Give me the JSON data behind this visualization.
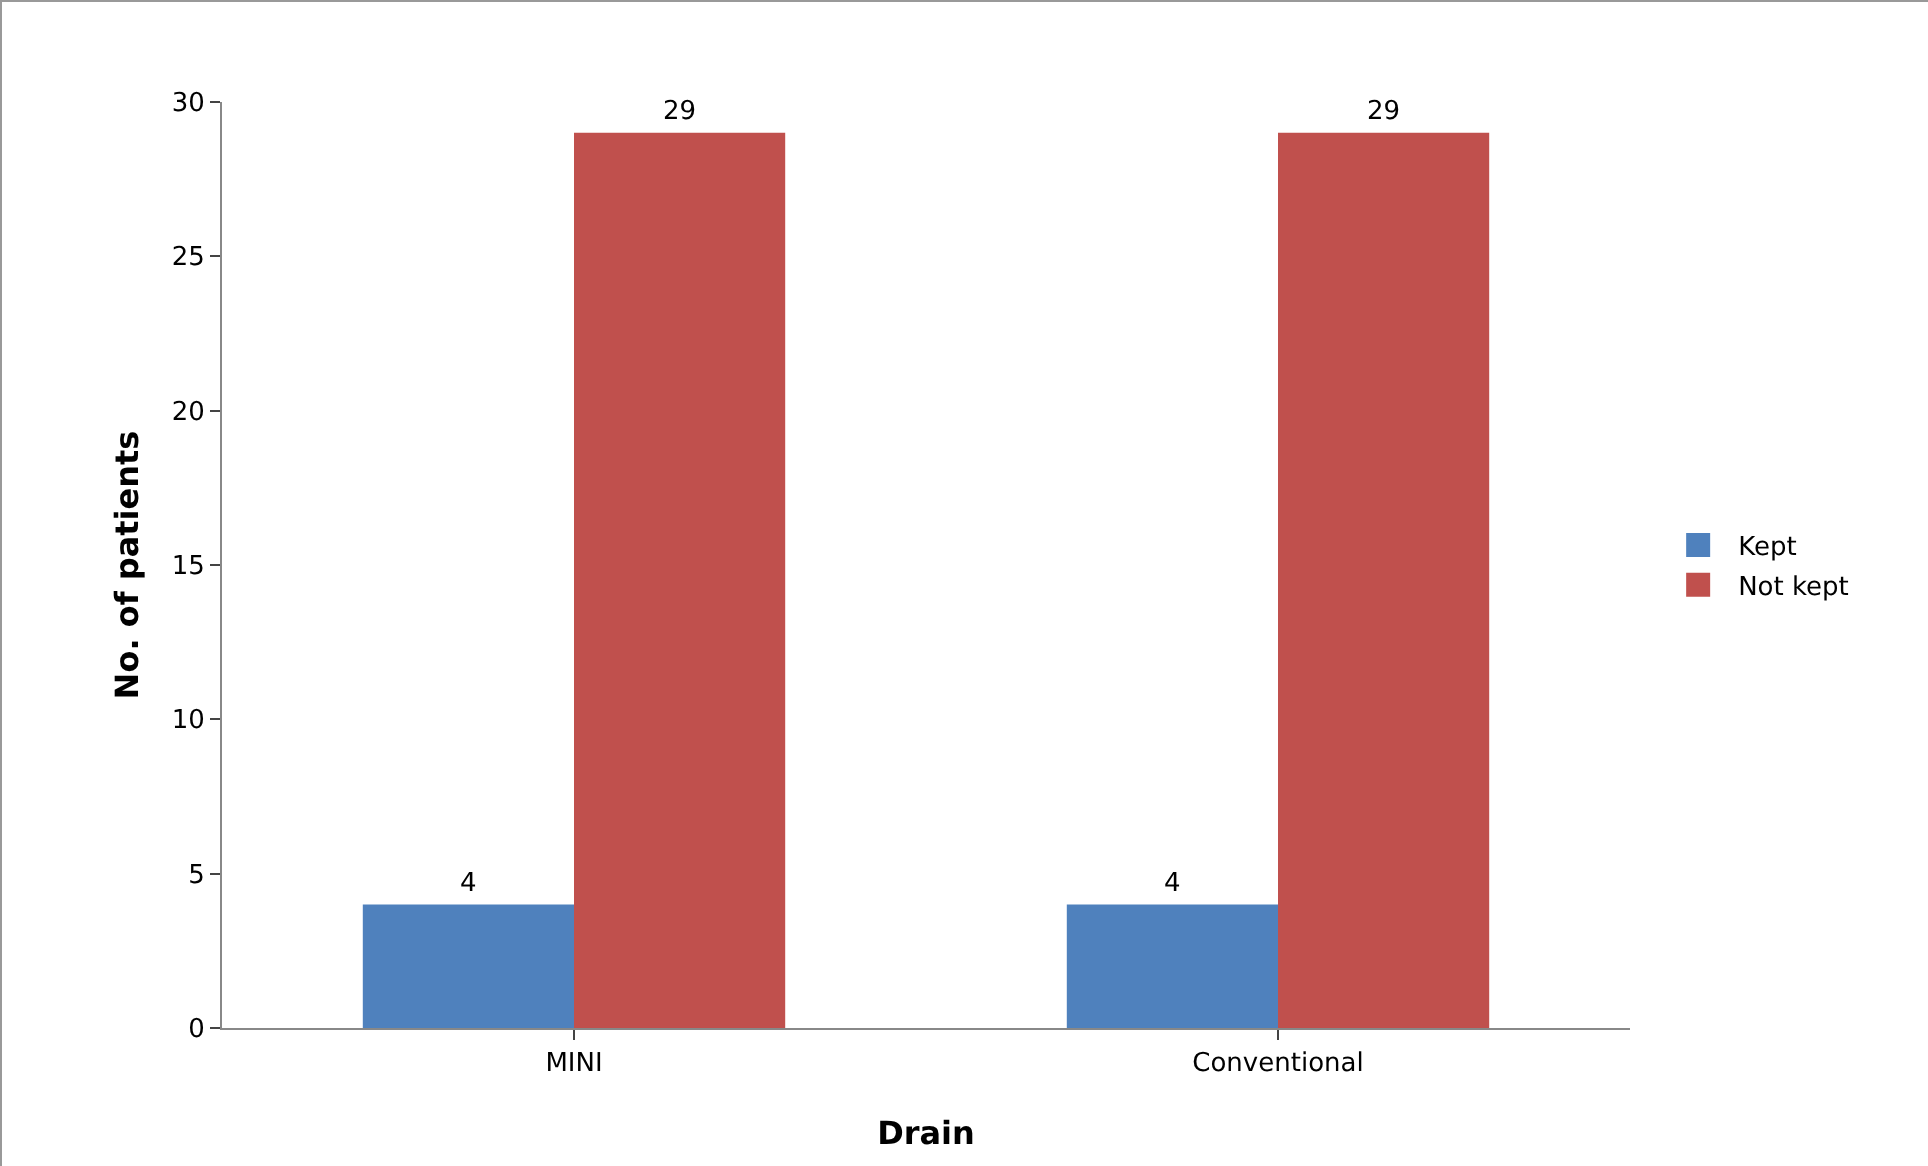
{
  "chart_data": {
    "type": "bar",
    "categories": [
      "MINI",
      "Conventional"
    ],
    "series": [
      {
        "name": "Kept",
        "color": "#4f81bd",
        "values": [
          4,
          4
        ]
      },
      {
        "name": "Not kept",
        "color": "#c0504d",
        "values": [
          29,
          29
        ]
      }
    ],
    "xlabel": "Drain",
    "ylabel": "No. of patients",
    "ylim": [
      0,
      30
    ],
    "yticks": [
      0,
      5,
      10,
      15,
      20,
      25,
      30
    ],
    "data_labels": true,
    "legend": "right",
    "grid": false
  }
}
